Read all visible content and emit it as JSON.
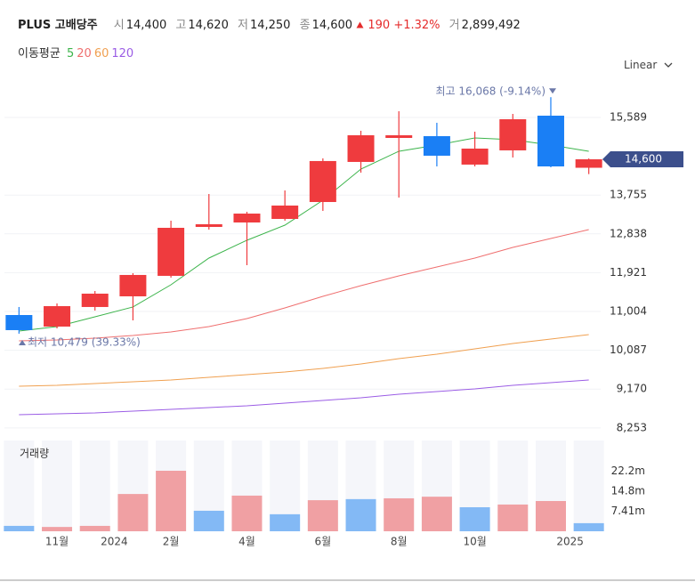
{
  "header": {
    "name": "PLUS 고배당주",
    "open_label": "시",
    "open": "14,400",
    "high_label": "고",
    "high": "14,620",
    "low_label": "저",
    "low": "14,250",
    "close_label": "종",
    "close": "14,600",
    "change": "190",
    "change_pct": "+1.32%",
    "volume_label": "거",
    "volume": "2,899,492"
  },
  "ma_legend": "이동평균",
  "scale_mode": "Linear",
  "chart_data": {
    "type": "candlestick",
    "categories": [
      null,
      "11월",
      null,
      "2024",
      "2월",
      null,
      "4월",
      null,
      "6월",
      null,
      "8월",
      null,
      "10월",
      null,
      null,
      "2025"
    ],
    "open": [
      10920,
      10647,
      11110,
      11362,
      11846,
      13002,
      13107,
      13191,
      13591,
      14538,
      15105,
      15147,
      14475,
      14811,
      15631,
      14400
    ],
    "high": [
      11110,
      11194,
      11488,
      11909,
      13149,
      13780,
      13360,
      13864,
      14622,
      15274,
      15736,
      15463,
      15253,
      15673,
      16068,
      14620
    ],
    "low": [
      10479,
      10605,
      11025,
      10794,
      11804,
      12939,
      12098,
      13149,
      13381,
      14285,
      13696,
      14432,
      14432,
      14643,
      14411,
      14250
    ],
    "close": [
      10563,
      11130,
      11425,
      11867,
      12981,
      13065,
      13317,
      13507,
      14559,
      15168,
      15168,
      14685,
      14853,
      15547,
      14432,
      14600
    ],
    "up_color": "#ef3b3e",
    "down_color": "#1a7ff5",
    "series": [
      {
        "name": "5",
        "color": "#3cb44b",
        "values": [
          10542,
          10647,
          10878,
          11110,
          11635,
          12266,
          12687,
          13044,
          13633,
          14369,
          14790,
          14937,
          15105,
          15063,
          14937,
          14790
        ]
      },
      {
        "name": "20",
        "color": "#ef6f6f",
        "values": [
          10311,
          10332,
          10374,
          10437,
          10521,
          10647,
          10836,
          11089,
          11362,
          11614,
          11846,
          12056,
          12266,
          12519,
          12729,
          12939
        ]
      },
      {
        "name": "60",
        "color": "#f0a050",
        "values": [
          9238,
          9259,
          9301,
          9343,
          9385,
          9448,
          9511,
          9574,
          9659,
          9764,
          9890,
          9995,
          10121,
          10247,
          10353,
          10458
        ]
      },
      {
        "name": "120",
        "color": "#9b5de5",
        "values": [
          8565,
          8586,
          8607,
          8649,
          8691,
          8733,
          8775,
          8838,
          8901,
          8965,
          9049,
          9112,
          9175,
          9259,
          9322,
          9385
        ]
      }
    ],
    "ylim": [
      8060,
      16577
    ],
    "yticks": [
      {
        "value": 8253,
        "label": "8,253"
      },
      {
        "value": 9170,
        "label": "9,170"
      },
      {
        "value": 10087,
        "label": "10,087"
      },
      {
        "value": 11004,
        "label": "11,004"
      },
      {
        "value": 11921,
        "label": "11,921"
      },
      {
        "value": 12838,
        "label": "12,838"
      },
      {
        "value": 13755,
        "label": "13,755"
      },
      {
        "value": 15589,
        "label": "15,589"
      }
    ],
    "grid": true,
    "annotations": {
      "max": "최고 16,068 (-9.14%)",
      "min": "최저 10,479 (39.33%)"
    },
    "volume": {
      "title": "거래량",
      "values": [
        2000000,
        1600000,
        2000000,
        13800000,
        22400000,
        7600000,
        13200000,
        6300000,
        11500000,
        11900000,
        12200000,
        12800000,
        8900000,
        9900000,
        11200000,
        3000000
      ],
      "colors": [
        "#83b9f5",
        "#f0a0a3",
        "#f0a0a3",
        "#f0a0a3",
        "#f0a0a3",
        "#83b9f5",
        "#f0a0a3",
        "#83b9f5",
        "#f0a0a3",
        "#83b9f5",
        "#f0a0a3",
        "#f0a0a3",
        "#83b9f5",
        "#f0a0a3",
        "#f0a0a3",
        "#83b9f5"
      ],
      "ylim": [
        0,
        33600000
      ],
      "yticks": [
        {
          "value": 7410000,
          "label": "7.41m"
        },
        {
          "value": 14800000,
          "label": "14.8m"
        },
        {
          "value": 22200000,
          "label": "22.2m"
        }
      ]
    }
  }
}
